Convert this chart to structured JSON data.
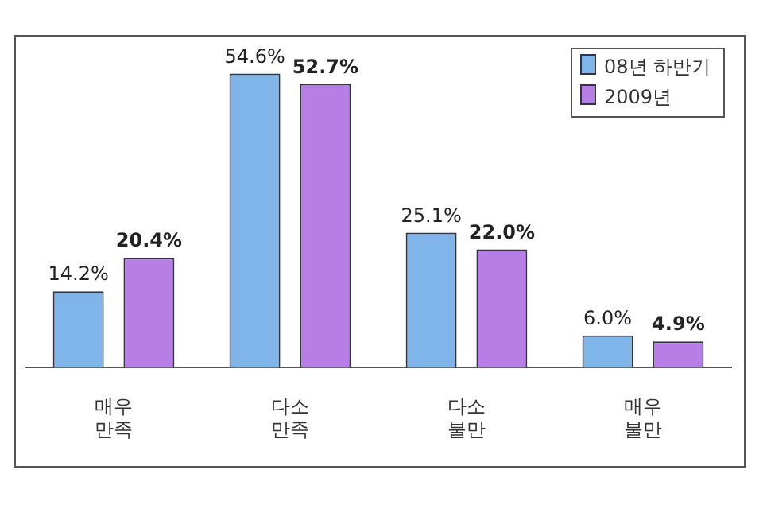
{
  "chart_data": {
    "type": "bar",
    "categories": [
      "매우\n만족",
      "다소\n만족",
      "다소\n불만",
      "매우\n불만"
    ],
    "series": [
      {
        "name": "08년 하반기",
        "color": "#7fb5e8",
        "values": [
          14.2,
          54.6,
          25.1,
          6.0
        ],
        "value_labels": [
          "14.2%",
          "54.6%",
          "25.1%",
          "6.0%"
        ]
      },
      {
        "name": "2009년",
        "color": "#b77fe6",
        "values": [
          20.4,
          52.7,
          22.0,
          4.9
        ],
        "value_labels": [
          "20.4%",
          "52.7%",
          "22.0%",
          "4.9%"
        ]
      }
    ],
    "legend": "top right",
    "grid": false
  }
}
